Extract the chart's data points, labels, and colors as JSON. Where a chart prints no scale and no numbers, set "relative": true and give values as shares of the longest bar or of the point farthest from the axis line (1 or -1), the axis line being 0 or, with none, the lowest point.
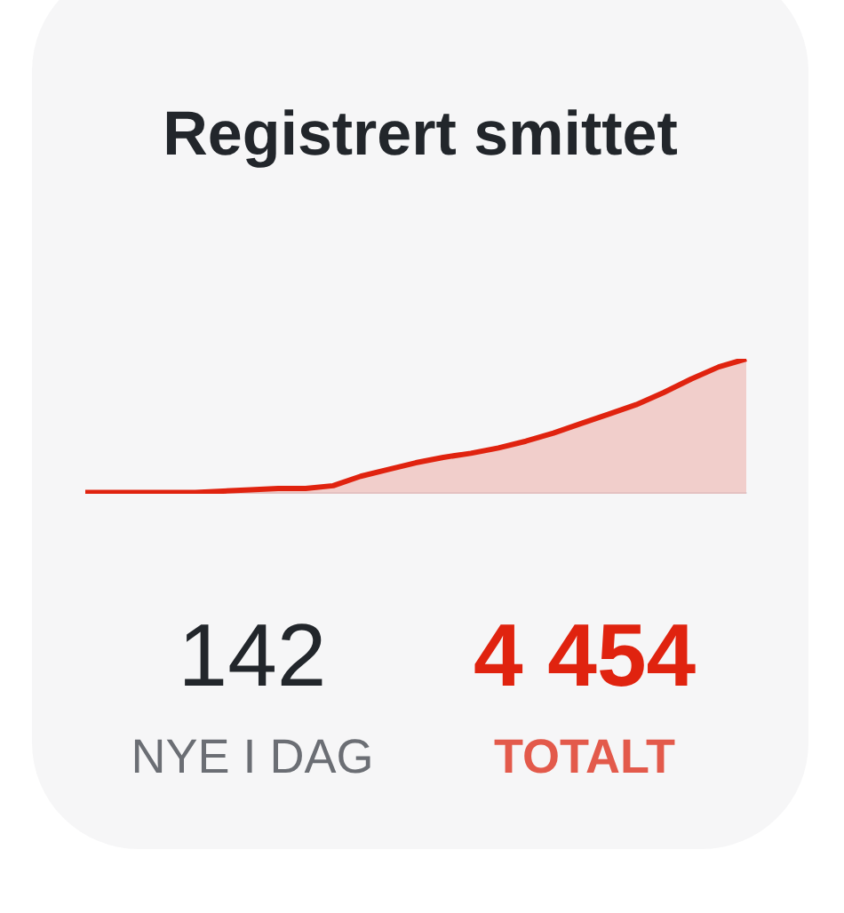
{
  "chart_data": {
    "type": "area",
    "title": "Registrert smittet",
    "categories": [
      null,
      null,
      null,
      null,
      null,
      null,
      null,
      null,
      null,
      null,
      null,
      null,
      null,
      null,
      null,
      null,
      null,
      null,
      null,
      null,
      null,
      null,
      null,
      null,
      null
    ],
    "series": [
      {
        "color": "#e0230f",
        "values": [
          0.01,
          0.01,
          0.01,
          0.01,
          0.01,
          0.02,
          0.03,
          0.04,
          0.04,
          0.06,
          0.13,
          0.18,
          0.23,
          0.27,
          0.3,
          0.34,
          0.39,
          0.45,
          0.52,
          0.59,
          0.66,
          0.75,
          0.85,
          0.94,
          1
        ]
      }
    ],
    "relative": true,
    "grid": false,
    "legend": false,
    "tick_labels": false,
    "marker": "none",
    "annotations": [
      "142",
      "NYE I DAG",
      "4 454",
      "TOTALT"
    ]
  }
}
